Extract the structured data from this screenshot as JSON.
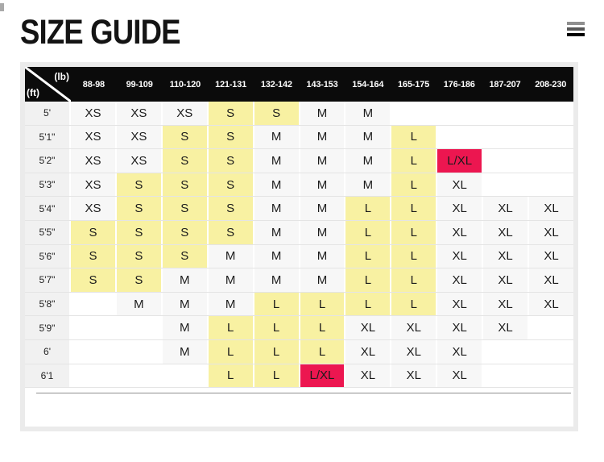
{
  "page": {
    "title": "SIZE GUIDE"
  },
  "menu": {
    "icon": "hamburger-menu-icon"
  },
  "colors": {
    "header_bg": "#0b0b0b",
    "cell_bg": "#f7f7f7",
    "label_bg": "#f1f1f1",
    "highlight_yellow": "#f8f1a2",
    "highlight_red": "#ec1650",
    "frame_gray": "#ebebeb"
  },
  "table": {
    "corner": {
      "top_unit": "(lb)",
      "bottom_unit": "(ft)"
    },
    "weight_columns": [
      "88-98",
      "99-109",
      "110-120",
      "121-131",
      "132-142",
      "143-153",
      "154-164",
      "165-175",
      "176-186",
      "187-207",
      "208-230"
    ],
    "rows": [
      {
        "height": "5'",
        "cells": [
          {
            "v": "XS",
            "s": "plain"
          },
          {
            "v": "XS",
            "s": "plain"
          },
          {
            "v": "XS",
            "s": "plain"
          },
          {
            "v": "S",
            "s": "yellow"
          },
          {
            "v": "S",
            "s": "yellow"
          },
          {
            "v": "M",
            "s": "plain"
          },
          {
            "v": "M",
            "s": "plain"
          },
          {
            "v": "",
            "s": "empty"
          },
          {
            "v": "",
            "s": "empty"
          },
          {
            "v": "",
            "s": "empty"
          },
          {
            "v": "",
            "s": "empty"
          }
        ]
      },
      {
        "height": "5'1\"",
        "cells": [
          {
            "v": "XS",
            "s": "plain"
          },
          {
            "v": "XS",
            "s": "plain"
          },
          {
            "v": "S",
            "s": "yellow"
          },
          {
            "v": "S",
            "s": "yellow"
          },
          {
            "v": "M",
            "s": "plain"
          },
          {
            "v": "M",
            "s": "plain"
          },
          {
            "v": "M",
            "s": "plain"
          },
          {
            "v": "L",
            "s": "yellow"
          },
          {
            "v": "",
            "s": "empty"
          },
          {
            "v": "",
            "s": "empty"
          },
          {
            "v": "",
            "s": "empty"
          }
        ]
      },
      {
        "height": "5'2\"",
        "cells": [
          {
            "v": "XS",
            "s": "plain"
          },
          {
            "v": "XS",
            "s": "plain"
          },
          {
            "v": "S",
            "s": "yellow"
          },
          {
            "v": "S",
            "s": "yellow"
          },
          {
            "v": "M",
            "s": "plain"
          },
          {
            "v": "M",
            "s": "plain"
          },
          {
            "v": "M",
            "s": "plain"
          },
          {
            "v": "L",
            "s": "yellow"
          },
          {
            "v": "L/XL",
            "s": "red"
          },
          {
            "v": "",
            "s": "empty"
          },
          {
            "v": "",
            "s": "empty"
          }
        ]
      },
      {
        "height": "5'3\"",
        "cells": [
          {
            "v": "XS",
            "s": "plain"
          },
          {
            "v": "S",
            "s": "yellow"
          },
          {
            "v": "S",
            "s": "yellow"
          },
          {
            "v": "S",
            "s": "yellow"
          },
          {
            "v": "M",
            "s": "plain"
          },
          {
            "v": "M",
            "s": "plain"
          },
          {
            "v": "M",
            "s": "plain"
          },
          {
            "v": "L",
            "s": "yellow"
          },
          {
            "v": "XL",
            "s": "plain"
          },
          {
            "v": "",
            "s": "empty"
          },
          {
            "v": "",
            "s": "empty"
          }
        ]
      },
      {
        "height": "5'4\"",
        "cells": [
          {
            "v": "XS",
            "s": "plain"
          },
          {
            "v": "S",
            "s": "yellow"
          },
          {
            "v": "S",
            "s": "yellow"
          },
          {
            "v": "S",
            "s": "yellow"
          },
          {
            "v": "M",
            "s": "plain"
          },
          {
            "v": "M",
            "s": "plain"
          },
          {
            "v": "L",
            "s": "yellow"
          },
          {
            "v": "L",
            "s": "yellow"
          },
          {
            "v": "XL",
            "s": "plain"
          },
          {
            "v": "XL",
            "s": "plain"
          },
          {
            "v": "XL",
            "s": "plain"
          }
        ]
      },
      {
        "height": "5'5\"",
        "cells": [
          {
            "v": "S",
            "s": "yellow"
          },
          {
            "v": "S",
            "s": "yellow"
          },
          {
            "v": "S",
            "s": "yellow"
          },
          {
            "v": "S",
            "s": "yellow"
          },
          {
            "v": "M",
            "s": "plain"
          },
          {
            "v": "M",
            "s": "plain"
          },
          {
            "v": "L",
            "s": "yellow"
          },
          {
            "v": "L",
            "s": "yellow"
          },
          {
            "v": "XL",
            "s": "plain"
          },
          {
            "v": "XL",
            "s": "plain"
          },
          {
            "v": "XL",
            "s": "plain"
          }
        ]
      },
      {
        "height": "5'6\"",
        "cells": [
          {
            "v": "S",
            "s": "yellow"
          },
          {
            "v": "S",
            "s": "yellow"
          },
          {
            "v": "S",
            "s": "yellow"
          },
          {
            "v": "M",
            "s": "plain"
          },
          {
            "v": "M",
            "s": "plain"
          },
          {
            "v": "M",
            "s": "plain"
          },
          {
            "v": "L",
            "s": "yellow"
          },
          {
            "v": "L",
            "s": "yellow"
          },
          {
            "v": "XL",
            "s": "plain"
          },
          {
            "v": "XL",
            "s": "plain"
          },
          {
            "v": "XL",
            "s": "plain"
          }
        ]
      },
      {
        "height": "5'7\"",
        "cells": [
          {
            "v": "S",
            "s": "yellow"
          },
          {
            "v": "S",
            "s": "yellow"
          },
          {
            "v": "M",
            "s": "plain"
          },
          {
            "v": "M",
            "s": "plain"
          },
          {
            "v": "M",
            "s": "plain"
          },
          {
            "v": "M",
            "s": "plain"
          },
          {
            "v": "L",
            "s": "yellow"
          },
          {
            "v": "L",
            "s": "yellow"
          },
          {
            "v": "XL",
            "s": "plain"
          },
          {
            "v": "XL",
            "s": "plain"
          },
          {
            "v": "XL",
            "s": "plain"
          }
        ]
      },
      {
        "height": "5'8\"",
        "cells": [
          {
            "v": "",
            "s": "empty"
          },
          {
            "v": "M",
            "s": "plain"
          },
          {
            "v": "M",
            "s": "plain"
          },
          {
            "v": "M",
            "s": "plain"
          },
          {
            "v": "L",
            "s": "yellow"
          },
          {
            "v": "L",
            "s": "yellow"
          },
          {
            "v": "L",
            "s": "yellow"
          },
          {
            "v": "L",
            "s": "yellow"
          },
          {
            "v": "XL",
            "s": "plain"
          },
          {
            "v": "XL",
            "s": "plain"
          },
          {
            "v": "XL",
            "s": "plain"
          }
        ]
      },
      {
        "height": "5'9\"",
        "cells": [
          {
            "v": "",
            "s": "empty"
          },
          {
            "v": "",
            "s": "empty"
          },
          {
            "v": "M",
            "s": "plain"
          },
          {
            "v": "L",
            "s": "yellow"
          },
          {
            "v": "L",
            "s": "yellow"
          },
          {
            "v": "L",
            "s": "yellow"
          },
          {
            "v": "XL",
            "s": "plain"
          },
          {
            "v": "XL",
            "s": "plain"
          },
          {
            "v": "XL",
            "s": "plain"
          },
          {
            "v": "XL",
            "s": "plain"
          },
          {
            "v": "",
            "s": "empty"
          }
        ]
      },
      {
        "height": "6'",
        "cells": [
          {
            "v": "",
            "s": "empty"
          },
          {
            "v": "",
            "s": "empty"
          },
          {
            "v": "M",
            "s": "plain"
          },
          {
            "v": "L",
            "s": "yellow"
          },
          {
            "v": "L",
            "s": "yellow"
          },
          {
            "v": "L",
            "s": "yellow"
          },
          {
            "v": "XL",
            "s": "plain"
          },
          {
            "v": "XL",
            "s": "plain"
          },
          {
            "v": "XL",
            "s": "plain"
          },
          {
            "v": "",
            "s": "empty"
          },
          {
            "v": "",
            "s": "empty"
          }
        ]
      },
      {
        "height": "6'1",
        "cells": [
          {
            "v": "",
            "s": "empty"
          },
          {
            "v": "",
            "s": "empty"
          },
          {
            "v": "",
            "s": "empty"
          },
          {
            "v": "L",
            "s": "yellow"
          },
          {
            "v": "L",
            "s": "yellow"
          },
          {
            "v": "L/XL",
            "s": "red"
          },
          {
            "v": "XL",
            "s": "plain"
          },
          {
            "v": "XL",
            "s": "plain"
          },
          {
            "v": "XL",
            "s": "plain"
          },
          {
            "v": "",
            "s": "empty"
          },
          {
            "v": "",
            "s": "empty"
          }
        ]
      }
    ]
  }
}
